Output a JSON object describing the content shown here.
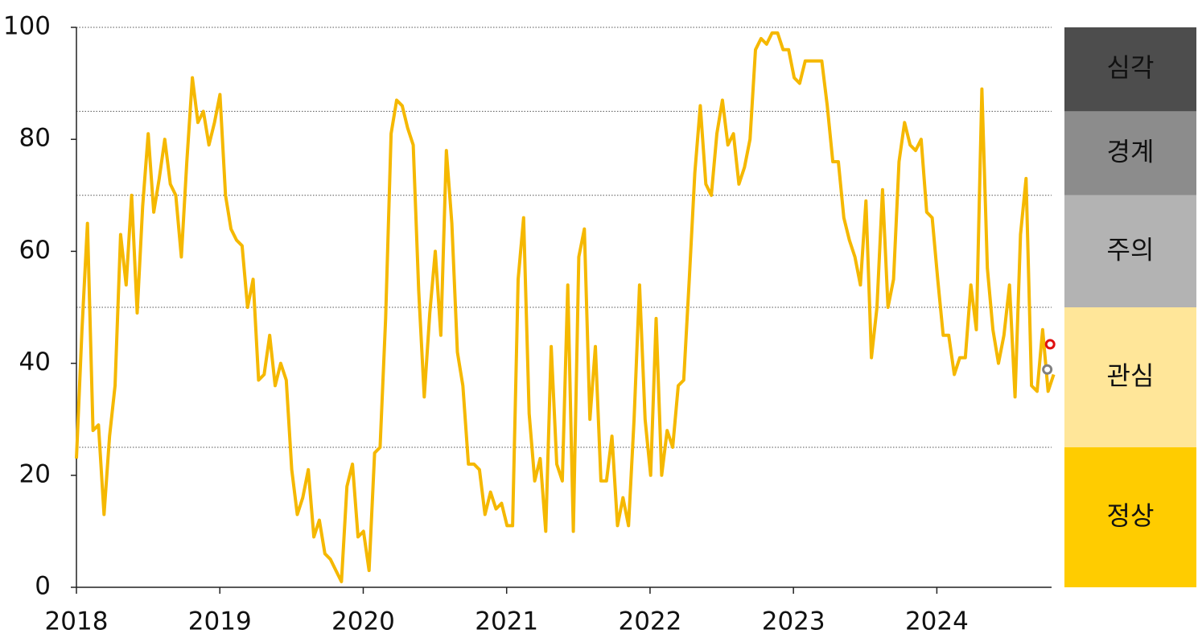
{
  "chart_data": {
    "type": "line",
    "x": [
      2018,
      2018.0385,
      2018.077,
      2018.1155,
      2018.154,
      2018.1925,
      2018.231,
      2018.2695,
      2018.308,
      2018.3465,
      2018.385,
      2018.4235,
      2018.462,
      2018.5005,
      2018.539,
      2018.5775,
      2018.616,
      2018.6545,
      2018.693,
      2018.7315,
      2018.77,
      2018.8085,
      2018.847,
      2018.8855,
      2018.924,
      2018.9625,
      2019.001,
      2019.0395,
      2019.078,
      2019.1165,
      2019.155,
      2019.1935,
      2019.232,
      2019.2705,
      2019.309,
      2019.3475,
      2019.386,
      2019.4245,
      2019.463,
      2019.5015,
      2019.54,
      2019.5785,
      2019.617,
      2019.6555,
      2019.694,
      2019.7325,
      2019.771,
      2019.8095,
      2019.848,
      2019.8865,
      2019.925,
      2019.9635,
      2020.002,
      2020.0405,
      2020.079,
      2020.1175,
      2020.156,
      2020.1945,
      2020.233,
      2020.2715,
      2020.31,
      2020.3485,
      2020.387,
      2020.4255,
      2020.464,
      2020.5025,
      2020.541,
      2020.5795,
      2020.618,
      2020.6565,
      2020.695,
      2020.7335,
      2020.772,
      2020.8105,
      2020.849,
      2020.8875,
      2020.926,
      2020.9645,
      2021.003,
      2021.0415,
      2021.08,
      2021.1185,
      2021.157,
      2021.1955,
      2021.234,
      2021.2725,
      2021.311,
      2021.3495,
      2021.388,
      2021.4265,
      2021.465,
      2021.5035,
      2021.542,
      2021.5805,
      2021.619,
      2021.6575,
      2021.696,
      2021.7345,
      2021.773,
      2021.8115,
      2021.85,
      2021.8885,
      2021.927,
      2021.9655,
      2022.004,
      2022.0425,
      2022.081,
      2022.1195,
      2022.158,
      2022.1965,
      2022.235,
      2022.2735,
      2022.312,
      2022.3505,
      2022.389,
      2022.4275,
      2022.466,
      2022.5045,
      2022.543,
      2022.5815,
      2022.62,
      2022.6585,
      2022.697,
      2022.7355,
      2022.774,
      2022.8125,
      2022.851,
      2022.8895,
      2022.928,
      2022.9665,
      2023.005,
      2023.0435,
      2023.082,
      2023.1205,
      2023.159,
      2023.1975,
      2023.236,
      2023.2745,
      2023.313,
      2023.3515,
      2023.39,
      2023.4285,
      2023.467,
      2023.5055,
      2023.544,
      2023.5825,
      2023.621,
      2023.6595,
      2023.698,
      2023.7365,
      2023.775,
      2023.8135,
      2023.852,
      2023.8905,
      2023.929,
      2023.9675,
      2024.006,
      2024.0445,
      2024.083,
      2024.1215,
      2024.16,
      2024.1985,
      2024.237,
      2024.2755,
      2024.314,
      2024.3525,
      2024.391,
      2024.4295,
      2024.468,
      2024.5065,
      2024.545,
      2024.5835,
      2024.622,
      2024.6605,
      2024.699,
      2024.7375,
      2024.776,
      2024.8145
    ],
    "series": [
      {
        "color": "#f5b800",
        "values": [
          23,
          46,
          65,
          28,
          29,
          13,
          27,
          36,
          63,
          54,
          70,
          49,
          68,
          81,
          67,
          73,
          80,
          72,
          70,
          59,
          76,
          91,
          83,
          85,
          79,
          83,
          88,
          70,
          64,
          62,
          61,
          50,
          55,
          37,
          38,
          45,
          36,
          40,
          37,
          21,
          13,
          16,
          21,
          9,
          12,
          6,
          5,
          3,
          1,
          18,
          22,
          9,
          10,
          3,
          24,
          25,
          48,
          81,
          87,
          86,
          82,
          79,
          53,
          34,
          49,
          60,
          45,
          78,
          65,
          42,
          36,
          22,
          22,
          21,
          13,
          17,
          14,
          15,
          11,
          11,
          55,
          66,
          31,
          19,
          23,
          10,
          43,
          22,
          19,
          54,
          10,
          59,
          64,
          30,
          43,
          19,
          19,
          27,
          11,
          16,
          11,
          30,
          54,
          30,
          20,
          48,
          20,
          28,
          25,
          36,
          37,
          55,
          74,
          86,
          72,
          70,
          81,
          87,
          79,
          81,
          72,
          75,
          80,
          96,
          98,
          97,
          99,
          99,
          96,
          96,
          91,
          90,
          94,
          94,
          94,
          94,
          86,
          76,
          76,
          66,
          62,
          59,
          54,
          69,
          41,
          50,
          71,
          50,
          55,
          76,
          83,
          79,
          78,
          80,
          67,
          66,
          55,
          45,
          45,
          38,
          41,
          41,
          54,
          46,
          89,
          57,
          46,
          40,
          45,
          54,
          34,
          63,
          73,
          36,
          35,
          46,
          35,
          38
        ]
      }
    ],
    "points": [
      {
        "x": 2024.77,
        "y": 38.9,
        "color": "#808080"
      },
      {
        "x": 2024.79,
        "y": 43.4,
        "color": "#e01010"
      }
    ],
    "bands": [
      {
        "label": "심각",
        "from": 85,
        "to": 100,
        "color": "#4d4d4d",
        "text_color": "#ffffff"
      },
      {
        "label": "경계",
        "from": 70,
        "to": 85,
        "color": "#8c8c8c",
        "text_color": "#ffffff"
      },
      {
        "label": "주의",
        "from": 50,
        "to": 70,
        "color": "#b3b3b3",
        "text_color": "#111111"
      },
      {
        "label": "관심",
        "from": 25,
        "to": 50,
        "color": "#ffe699",
        "text_color": "#111111"
      },
      {
        "label": "정상",
        "from": 0,
        "to": 25,
        "color": "#ffcc00",
        "text_color": "#111111"
      }
    ],
    "xlim": [
      2018,
      2024.8
    ],
    "xticks": [
      2018,
      2019,
      2020,
      2021,
      2022,
      2023,
      2024
    ],
    "ylim": [
      0,
      100
    ],
    "yticks": [
      0,
      20,
      40,
      60,
      80,
      100
    ]
  }
}
